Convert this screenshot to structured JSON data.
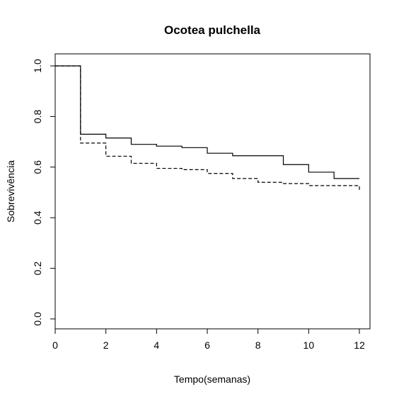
{
  "chart_data": {
    "type": "line",
    "title": "Ocotea pulchella",
    "xlabel": "Tempo(semanas)",
    "ylabel": "Sobrevivência",
    "xlim": [
      0,
      12
    ],
    "ylim": [
      0,
      1
    ],
    "x_ticks": [
      "0",
      "2",
      "4",
      "6",
      "8",
      "10",
      "12"
    ],
    "y_ticks": [
      "0.0",
      "0.2",
      "0.4",
      "0.6",
      "0.8",
      "1.0"
    ],
    "grid": false,
    "series": [
      {
        "line_style": "solid",
        "color": "#000000",
        "points": [
          [
            0,
            1.0
          ],
          [
            1,
            0.73
          ],
          [
            2,
            0.715
          ],
          [
            3,
            0.69
          ],
          [
            4,
            0.683
          ],
          [
            5,
            0.677
          ],
          [
            6,
            0.655
          ],
          [
            7,
            0.645
          ],
          [
            9,
            0.61
          ],
          [
            10,
            0.58
          ],
          [
            11,
            0.555
          ],
          [
            12,
            0.555
          ]
        ]
      },
      {
        "line_style": "dashed",
        "color": "#000000",
        "points": [
          [
            0,
            1.0
          ],
          [
            1,
            0.695
          ],
          [
            2,
            0.643
          ],
          [
            3,
            0.615
          ],
          [
            4,
            0.595
          ],
          [
            5,
            0.59
          ],
          [
            6,
            0.575
          ],
          [
            7,
            0.555
          ],
          [
            8,
            0.54
          ],
          [
            9,
            0.535
          ],
          [
            10,
            0.527
          ],
          [
            12,
            0.51
          ]
        ]
      }
    ]
  }
}
